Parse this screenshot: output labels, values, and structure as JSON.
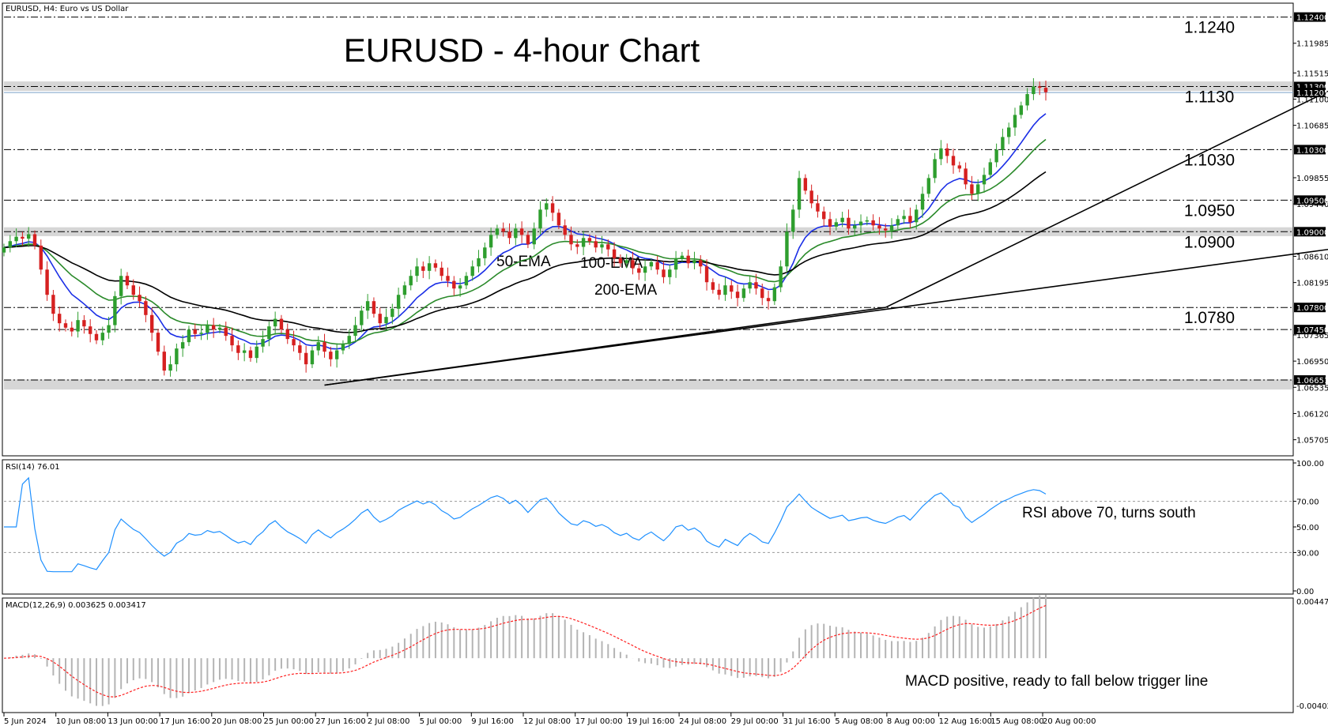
{
  "chart_data": [
    {
      "type": "candlestick",
      "panel": "price",
      "symbol_label": "EURUSD, H4:  Euro vs US Dollar",
      "title": "EURUSD - 4-hour Chart",
      "ylim": [
        1.0545,
        1.1262
      ],
      "y_ticks": [
        "1.11985",
        "1.11515",
        "1.11100",
        "1.10685",
        "1.09855",
        "1.09440",
        "1.08610",
        "1.08195",
        "1.07365",
        "1.06950",
        "1.06535",
        "1.06120",
        "1.05705"
      ],
      "price_tags": [
        {
          "label": "1.12400",
          "value": 1.124
        },
        {
          "label": "1.11300",
          "value": 1.113
        },
        {
          "label": "1.11205",
          "value": 1.11205
        },
        {
          "label": "1.10300",
          "value": 1.103
        },
        {
          "label": "1.09500",
          "value": 1.095
        },
        {
          "label": "1.09000",
          "value": 1.09
        },
        {
          "label": "1.07800",
          "value": 1.078
        },
        {
          "label": "1.07450",
          "value": 1.0745
        },
        {
          "label": "1.06651",
          "value": 1.06651
        }
      ],
      "levels": [
        {
          "label": "1.1240",
          "value": 1.124
        },
        {
          "label": "1.1130",
          "value": 1.113
        },
        {
          "label": "1.1030",
          "value": 1.103
        },
        {
          "label": "1.0950",
          "value": 1.095
        },
        {
          "label": "1.0900",
          "value": 1.09
        },
        {
          "label": "1.0780",
          "value": 1.078
        }
      ],
      "zones": [
        {
          "from": 1.1123,
          "to": 1.1138
        },
        {
          "from": 1.0893,
          "to": 1.0907
        },
        {
          "from": 1.065,
          "to": 1.0666
        }
      ],
      "ema_labels": [
        "50-EMA",
        "100-EMA",
        "200-EMA"
      ],
      "colors": {
        "up": "#2e9e2e",
        "down": "#d62020",
        "ema50": "#1a2ee6",
        "ema100": "#2a8a2a",
        "ema200": "#000000",
        "grid": "#000000"
      },
      "closes": [
        1.0875,
        1.0885,
        1.0892,
        1.0889,
        1.0896,
        1.0878,
        1.084,
        1.08,
        1.077,
        1.0755,
        1.0748,
        1.0742,
        1.076,
        1.075,
        1.0738,
        1.0728,
        1.074,
        1.0752,
        1.0798,
        1.083,
        1.0815,
        1.08,
        1.079,
        1.0768,
        1.074,
        1.071,
        1.068,
        1.069,
        1.0715,
        1.0725,
        1.0745,
        1.0738,
        1.074,
        1.0752,
        1.0745,
        1.0748,
        1.0735,
        1.072,
        1.0708,
        1.0712,
        1.07,
        1.0718,
        1.073,
        1.075,
        1.0762,
        1.0745,
        1.073,
        1.072,
        1.0708,
        1.069,
        1.0712,
        1.0725,
        1.071,
        1.0698,
        1.0712,
        1.0722,
        1.0735,
        1.0752,
        1.0775,
        1.079,
        1.077,
        1.0755,
        1.0765,
        1.0778,
        1.08,
        1.0815,
        1.083,
        1.0845,
        1.0838,
        1.085,
        1.0843,
        1.083,
        1.0822,
        1.081,
        1.0815,
        1.083,
        1.0845,
        1.0858,
        1.0875,
        1.0895,
        1.0905,
        1.09,
        1.089,
        1.0905,
        1.0895,
        1.088,
        1.0905,
        1.0935,
        1.0945,
        1.093,
        1.091,
        1.0895,
        1.088,
        1.0876,
        1.089,
        1.0885,
        1.0875,
        1.088,
        1.0872,
        1.0858,
        1.085,
        1.0855,
        1.0842,
        1.0835,
        1.0845,
        1.0852,
        1.084,
        1.0828,
        1.084,
        1.0858,
        1.0862,
        1.085,
        1.0855,
        1.0845,
        1.082,
        1.0808,
        1.08,
        1.0815,
        1.0805,
        1.0795,
        1.081,
        1.082,
        1.081,
        1.0795,
        1.079,
        1.0812,
        1.0845,
        1.09,
        1.0935,
        1.0985,
        1.0965,
        1.0945,
        1.0932,
        1.092,
        1.0908,
        1.0915,
        1.0922,
        1.0905,
        1.091,
        1.0916,
        1.0918,
        1.091,
        1.0905,
        1.0902,
        1.091,
        1.092,
        1.0925,
        1.0915,
        1.0935,
        1.096,
        1.0985,
        1.1015,
        1.1032,
        1.102,
        1.1005,
        1.1,
        1.0975,
        1.096,
        1.0975,
        1.099,
        1.101,
        1.103,
        1.105,
        1.1065,
        1.1085,
        1.11,
        1.1118,
        1.113,
        1.1128,
        1.1121
      ],
      "x_tick_labels": [
        "5 Jun 2024",
        "10 Jun 08:00",
        "13 Jun 00:00",
        "17 Jun 16:00",
        "20 Jun 08:00",
        "25 Jun 00:00",
        "27 Jun 16:00",
        "2 Jul 08:00",
        "5 Jul 00:00",
        "9 Jul 16:00",
        "12 Jul 08:00",
        "17 Jul 00:00",
        "19 Jul 16:00",
        "24 Jul 08:00",
        "29 Jul 00:00",
        "31 Jul 16:00",
        "5 Aug 08:00",
        "8 Aug 00:00",
        "12 Aug 16:00",
        "15 Aug 08:00",
        "20 Aug 00:00"
      ],
      "trendlines": [
        {
          "from": [
            52,
            1.0657
          ],
          "to": [
            143,
            1.078
          ]
        },
        {
          "from": [
            52,
            1.0657
          ],
          "to": [
            230,
            1.0892
          ]
        },
        {
          "from": [
            143,
            1.078
          ],
          "to": [
            230,
            1.1195
          ]
        }
      ]
    },
    {
      "type": "line",
      "panel": "rsi",
      "indicator_label": "RSI(14) 76.01",
      "ylim": [
        0,
        100
      ],
      "y_ticks": [
        "100.00",
        "70.00",
        "50.00",
        "30.00",
        "0.00"
      ],
      "levels": [
        70,
        30
      ],
      "annotation": "RSI above 70, turns south",
      "color": "#1e90ff"
    },
    {
      "type": "bar",
      "panel": "macd",
      "indicator_label": "MACD(12,26,9) 0.003625 0.003417",
      "y_ticks": [
        "0.004477",
        "-0.004023"
      ],
      "annotation": "MACD positive, ready to fall below trigger line",
      "colors": {
        "histogram": "#b4b4b4",
        "signal": "#ff2020"
      }
    }
  ]
}
